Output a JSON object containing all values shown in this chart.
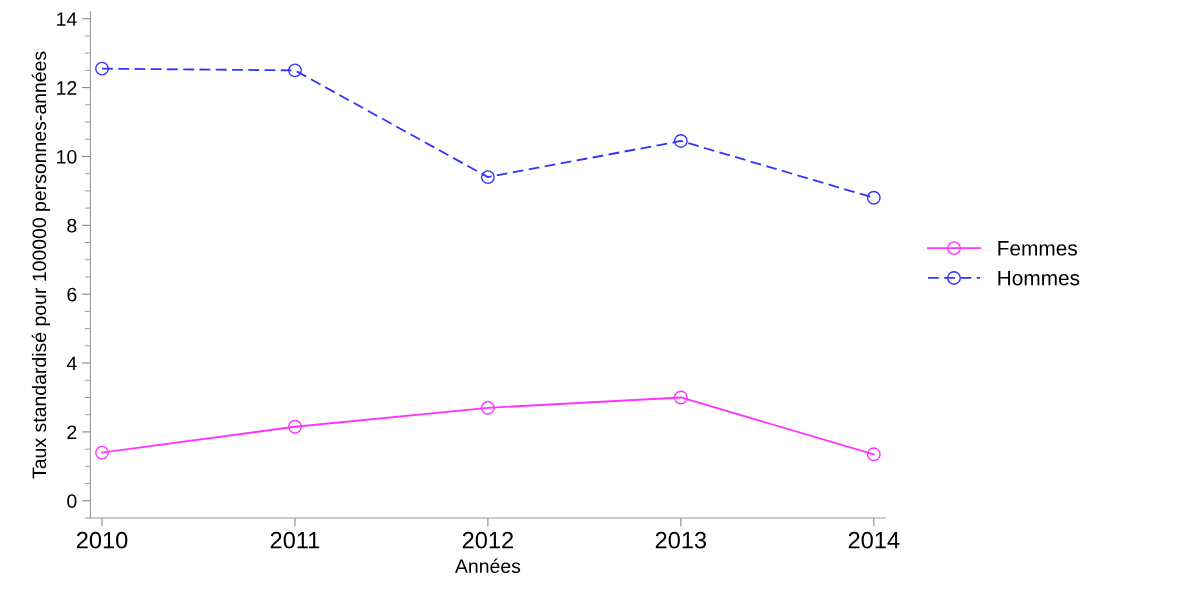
{
  "chart_data": {
    "type": "line",
    "xlabel": "Années",
    "ylabel": "Taux standardisé pour 100000 personnes-années",
    "x": [
      2010,
      2011,
      2012,
      2013,
      2014
    ],
    "xlim": [
      2009.94,
      2014.06
    ],
    "xticks": [
      2010,
      2011,
      2012,
      2013,
      2014
    ],
    "ylim": [
      -0.5,
      14.2
    ],
    "yticks": [
      0,
      2,
      4,
      6,
      8,
      10,
      12,
      14
    ],
    "series": [
      {
        "name": "Femmes",
        "color": "#ff33ff",
        "line_style": "solid",
        "values": [
          1.4,
          2.15,
          2.7,
          3.0,
          1.35
        ]
      },
      {
        "name": "Hommes",
        "color": "#3333ff",
        "line_style": "dashed",
        "values": [
          12.55,
          12.5,
          9.4,
          10.45,
          8.8
        ]
      }
    ],
    "marker": "circle",
    "grid": false,
    "legend": "right"
  }
}
